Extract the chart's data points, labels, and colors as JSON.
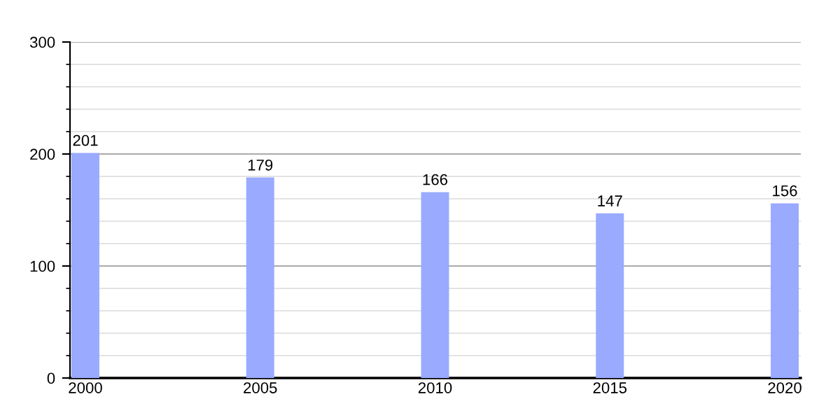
{
  "chart_data": {
    "type": "bar",
    "categories": [
      "2000",
      "2005",
      "2010",
      "2015",
      "2020"
    ],
    "values": [
      201,
      179,
      166,
      147,
      156
    ],
    "color": "#99aaff",
    "ylim": [
      0,
      300
    ],
    "yticks": [
      0,
      {
        "value": 20,
        "label": null
      },
      {
        "value": 40,
        "label": null
      },
      {
        "value": 60,
        "label": null
      },
      {
        "value": 80,
        "label": null
      },
      100,
      {
        "value": 120,
        "label": null
      },
      {
        "value": 140,
        "label": null
      },
      {
        "value": 160,
        "label": null
      },
      {
        "value": 180,
        "label": null
      },
      200,
      {
        "value": 220,
        "label": null
      },
      {
        "value": 240,
        "label": null
      },
      {
        "value": 260,
        "label": null
      },
      {
        "value": 280,
        "label": null
      },
      300
    ],
    "grid": "y",
    "data_labels": true
  }
}
